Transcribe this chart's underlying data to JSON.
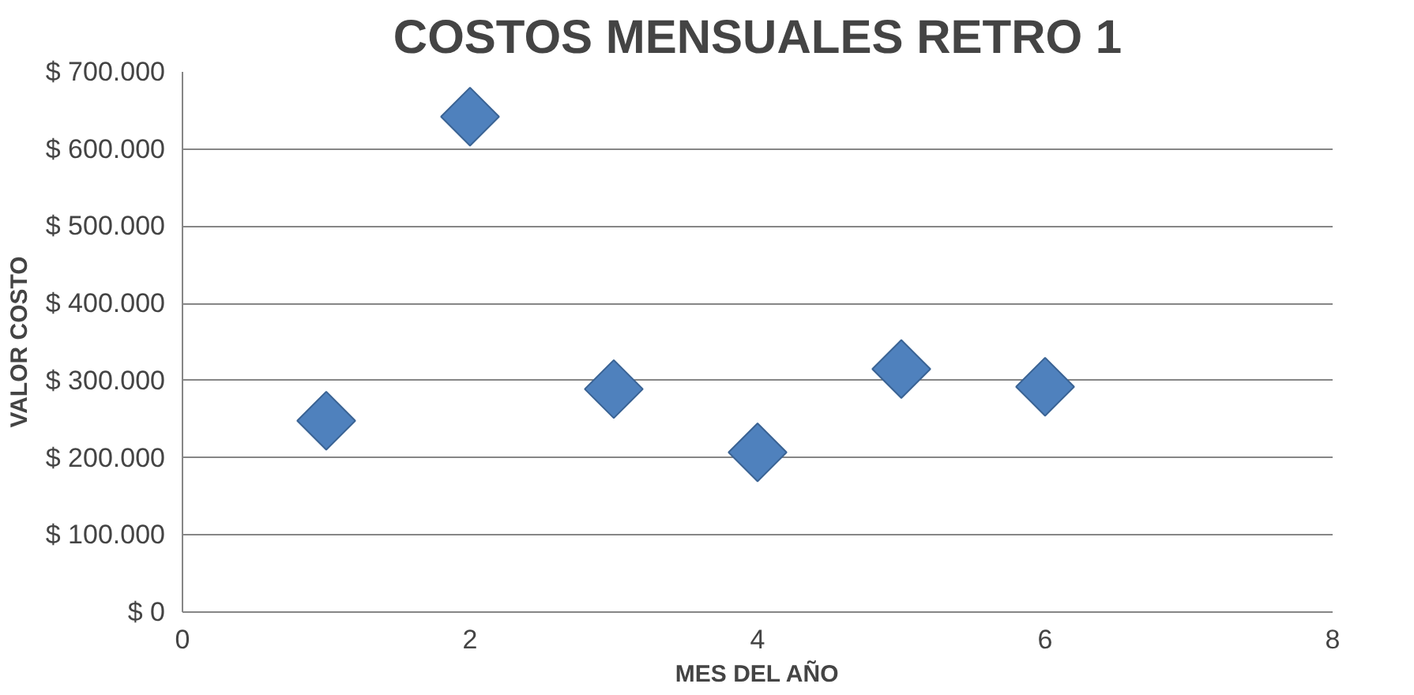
{
  "chart_data": {
    "type": "scatter",
    "title": "COSTOS MENSUALES RETRO 1",
    "xlabel": "MES DEL AÑO",
    "ylabel": "VALOR COSTO",
    "x": [
      1,
      2,
      3,
      4,
      5,
      6
    ],
    "series": [
      {
        "color": "#4f81bd",
        "values": [
          248000,
          642000,
          289000,
          207000,
          315000,
          292000
        ]
      }
    ],
    "xlim": [
      0,
      8
    ],
    "xticks": [
      0,
      2,
      4,
      6,
      8
    ],
    "ylim": [
      0,
      700000
    ],
    "yticks": [
      {
        "value": 0,
        "label": "$ 0"
      },
      {
        "value": 100000,
        "label": "$ 100.000"
      },
      {
        "value": 200000,
        "label": "$ 200.000"
      },
      {
        "value": 300000,
        "label": "$ 300.000"
      },
      {
        "value": 400000,
        "label": "$ 400.000"
      },
      {
        "value": 500000,
        "label": "$ 500.000"
      },
      {
        "value": 600000,
        "label": "$ 600.000"
      },
      {
        "value": 700000,
        "label": "$ 700.000"
      }
    ],
    "grid": "y",
    "marker": "diamond"
  }
}
